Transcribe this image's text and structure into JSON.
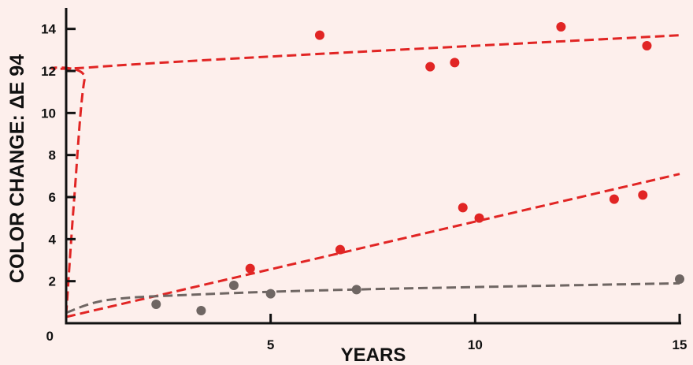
{
  "colors": {
    "background": "#fdefec",
    "red": "#e12524",
    "gray": "#6f6663",
    "axis": "#111111"
  },
  "chart_data": {
    "type": "scatter",
    "title": "",
    "xlabel": "YEARS",
    "ylabel": "COLOR CHANGE: ΔE 94",
    "xlim": [
      0,
      15
    ],
    "ylim": [
      0,
      15
    ],
    "x_ticks": [
      0,
      5,
      10,
      15
    ],
    "y_ticks": [
      2,
      4,
      6,
      8,
      10,
      12,
      14
    ],
    "grid": false,
    "legend": "none",
    "series": [
      {
        "color": "red",
        "points": [
          [
            6.2,
            13.7
          ],
          [
            8.9,
            12.2
          ],
          [
            9.5,
            12.4
          ],
          [
            12.1,
            14.1
          ],
          [
            14.2,
            13.2
          ]
        ],
        "trend": [
          [
            0,
            0.4
          ],
          [
            0.2,
            6
          ],
          [
            0.45,
            11.6
          ],
          [
            0.8,
            12.2
          ],
          [
            15,
            13.7
          ]
        ]
      },
      {
        "color": "red",
        "points": [
          [
            4.5,
            2.6
          ],
          [
            6.7,
            3.5
          ],
          [
            9.7,
            5.5
          ],
          [
            10.1,
            5.0
          ],
          [
            13.4,
            5.9
          ],
          [
            14.1,
            6.1
          ]
        ],
        "trend": [
          [
            0,
            0.3
          ],
          [
            15,
            7.1
          ]
        ]
      },
      {
        "color": "gray",
        "points": [
          [
            2.2,
            0.9
          ],
          [
            3.3,
            0.6
          ],
          [
            4.1,
            1.8
          ],
          [
            5.0,
            1.4
          ],
          [
            7.1,
            1.6
          ],
          [
            15.0,
            2.1
          ]
        ],
        "trend": [
          [
            0,
            0.5
          ],
          [
            1.0,
            1.1
          ],
          [
            3,
            1.35
          ],
          [
            7,
            1.6
          ],
          [
            15,
            1.9
          ]
        ]
      }
    ]
  }
}
